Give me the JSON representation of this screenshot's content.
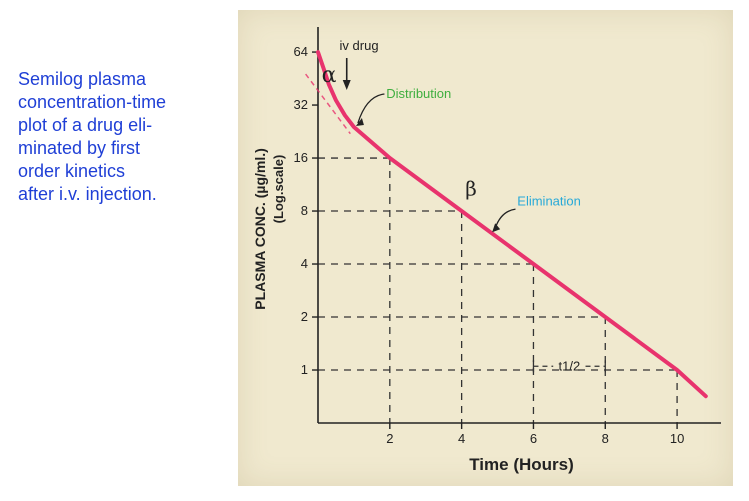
{
  "caption": {
    "lines": [
      "Semilog plasma",
      "concentration-time",
      "plot of a drug eli-",
      "minated by first",
      "order kinetics",
      "after i.v. injection."
    ]
  },
  "chart_data": {
    "type": "line",
    "xlabel": "Time (Hours)",
    "ylabel": "PLASMA CONC. (µg/ml.)",
    "ylabel_sub": "(Log.scale)",
    "x_ticks": [
      2,
      4,
      6,
      8,
      10
    ],
    "y_ticks": [
      1,
      2,
      4,
      8,
      16,
      32,
      64
    ],
    "y_scale": "log2",
    "xlim": [
      0,
      11
    ],
    "ylim": [
      0.5,
      80
    ],
    "grid": false,
    "curve_color": "#e8336d",
    "series": [
      {
        "x": [
          0,
          0.15,
          0.3,
          0.5,
          0.75,
          1,
          2,
          4,
          6,
          8,
          10,
          10.8
        ],
        "y": [
          64,
          52,
          42,
          34,
          28,
          24,
          16,
          8,
          4,
          2,
          1,
          0.71
        ]
      }
    ],
    "alpha_extrapolation": {
      "x": [
        -0.4,
        0.9
      ],
      "y": [
        48,
        22
      ]
    },
    "guides": [
      {
        "x": 2,
        "y": 16
      },
      {
        "x": 4,
        "y": 8
      },
      {
        "x": 6,
        "y": 4
      },
      {
        "x": 8,
        "y": 2
      },
      {
        "x": 10,
        "y": 1
      }
    ],
    "annotations": {
      "iv_drug": "iv drug",
      "alpha": "α",
      "beta": "β",
      "distribution": "Distribution",
      "elimination": "Elimination",
      "half_life": "t1/2",
      "distribution_color": "#3fae3f",
      "elimination_color": "#27a9d8"
    }
  }
}
